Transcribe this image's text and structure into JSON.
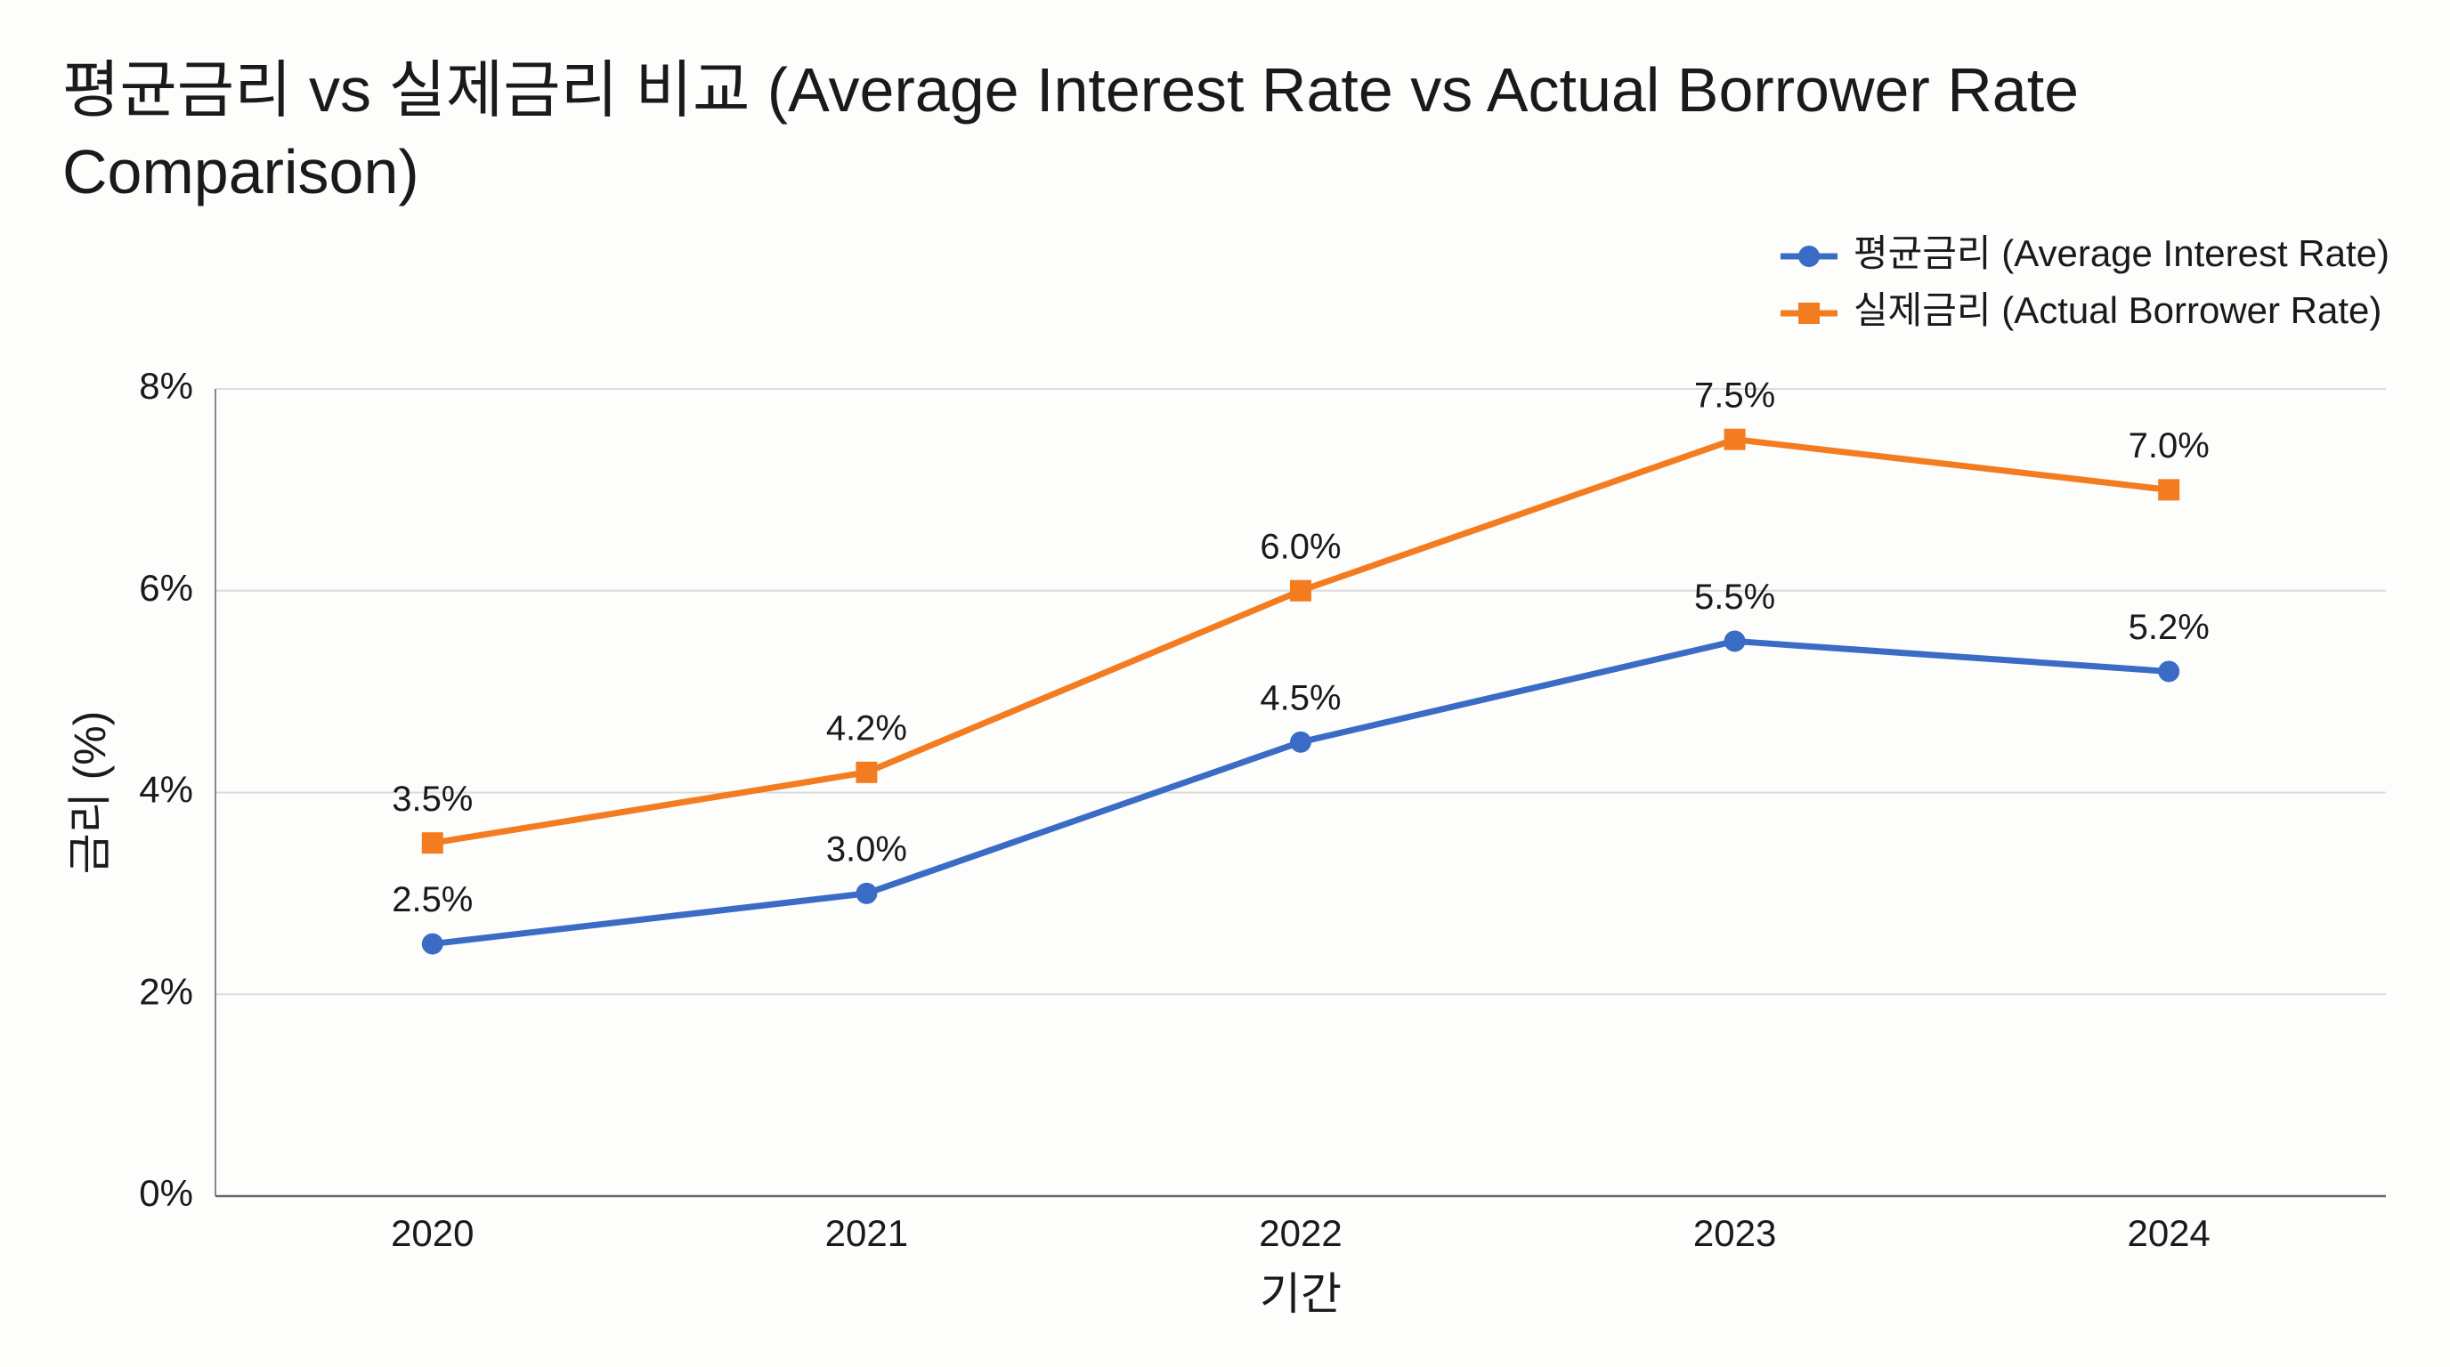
{
  "chart_data": {
    "type": "line",
    "title": "평균금리 vs 실제금리 비교 (Average Interest Rate vs Actual Borrower Rate Comparison)",
    "x_label": "기간",
    "y_label": "금리 (%)",
    "categories": [
      "2020",
      "2021",
      "2022",
      "2023",
      "2024"
    ],
    "series": [
      {
        "name": "평균금리 (Average Interest Rate)",
        "color": "#3a6cc6",
        "marker": "circle",
        "values": [
          2.5,
          3.0,
          4.5,
          5.5,
          5.2
        ],
        "value_labels": [
          "2.5%",
          "3.0%",
          "4.5%",
          "5.5%",
          "5.2%"
        ]
      },
      {
        "name": "실제금리 (Actual Borrower Rate)",
        "color": "#f47c20",
        "marker": "square",
        "values": [
          3.5,
          4.2,
          6.0,
          7.5,
          7.0
        ],
        "value_labels": [
          "3.5%",
          "4.2%",
          "6.0%",
          "7.5%",
          "7.0%"
        ]
      }
    ],
    "ylim": [
      0,
      8
    ],
    "yticks": [
      {
        "value": 0,
        "label": "0%"
      },
      {
        "value": 2,
        "label": "2%"
      },
      {
        "value": 4,
        "label": "4%"
      },
      {
        "value": 6,
        "label": "6%"
      },
      {
        "value": 8,
        "label": "8%"
      }
    ],
    "grid": true,
    "legend": "top-right"
  }
}
